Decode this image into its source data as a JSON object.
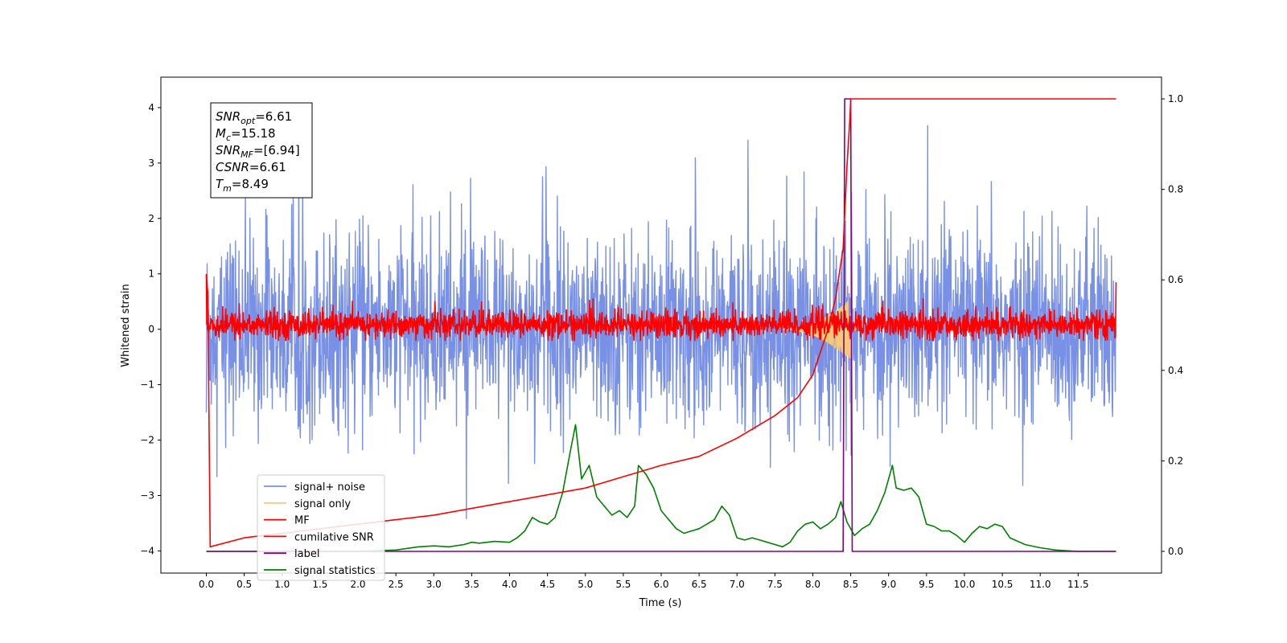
{
  "chart_data": {
    "type": "line",
    "xlabel": "Time (s)",
    "ylabel": "Whitened strain",
    "xlim": [
      -0.6,
      12.6
    ],
    "ylim": [
      -4.4,
      4.55
    ],
    "y2lim": [
      -0.048,
      1.048
    ],
    "x_ticks": [
      "0.0",
      "0.5",
      "1.0",
      "1.5",
      "2.0",
      "2.5",
      "3.0",
      "3.5",
      "4.0",
      "4.5",
      "5.0",
      "5.5",
      "6.0",
      "6.5",
      "7.0",
      "7.5",
      "8.0",
      "8.5",
      "9.0",
      "9.5",
      "10.0",
      "10.5",
      "11.0",
      "11.5"
    ],
    "y_ticks": [
      "−4",
      "−3",
      "−2",
      "−1",
      "0",
      "1",
      "2",
      "3",
      "4"
    ],
    "y2_ticks": [
      "0.0",
      "0.2",
      "0.4",
      "0.6",
      "0.8",
      "1.0"
    ],
    "legend_position": "lower-left",
    "annotation": {
      "lines": [
        {
          "sym": "SNR",
          "sub": "opt",
          "val": "=6.61"
        },
        {
          "sym": "M",
          "sub": "c",
          "val": "=15.18"
        },
        {
          "sym": "SNR",
          "sub": "MF",
          "val": "=[6.94]"
        },
        {
          "sym": "CSNR",
          "sub": "",
          "val": "=6.61"
        },
        {
          "sym": "T",
          "sub": "m",
          "val": "=8.49"
        }
      ]
    },
    "series": [
      {
        "name": "signal+ noise",
        "axis": "left",
        "color": "#7890e6",
        "style": "noise band, roughly −2.2 to 2.2 with spikes up to 4.15 and down to −4.0"
      },
      {
        "name": "signal only",
        "axis": "left",
        "color": "#f5c97a",
        "style": "chirp near merger",
        "peak_time": 8.49,
        "peak_amplitude": 0.55
      },
      {
        "name": "MF",
        "axis": "left",
        "color": "#ff0000",
        "style": "noise band, roughly −0.2 to 0.4"
      },
      {
        "name": "cumilative SNR",
        "axis": "right",
        "color": "#ff0000",
        "x": [
          0.0,
          0.02,
          0.05,
          0.5,
          1.0,
          2.0,
          3.0,
          4.0,
          5.0,
          6.0,
          6.5,
          7.0,
          7.5,
          7.8,
          8.0,
          8.2,
          8.3,
          8.4,
          8.45,
          8.49,
          8.5,
          12.0
        ],
        "y": [
          0.61,
          0.57,
          0.01,
          0.03,
          0.04,
          0.06,
          0.08,
          0.11,
          0.14,
          0.19,
          0.21,
          0.25,
          0.3,
          0.34,
          0.39,
          0.49,
          0.56,
          0.67,
          0.85,
          0.96,
          1.0,
          1.0
        ]
      },
      {
        "name": "label",
        "axis": "right",
        "color": "#800080",
        "x": [
          0.0,
          8.4,
          8.42,
          8.5,
          8.52,
          12.0
        ],
        "y": [
          0.0,
          0.0,
          1.0,
          1.0,
          0.0,
          0.0
        ]
      },
      {
        "name": "signal statistics",
        "axis": "right",
        "color": "#008000",
        "x": [
          0.0,
          0.5,
          1.0,
          2.0,
          2.5,
          2.8,
          3.0,
          3.2,
          3.4,
          3.5,
          3.6,
          3.8,
          4.0,
          4.1,
          4.2,
          4.3,
          4.4,
          4.5,
          4.6,
          4.7,
          4.8,
          4.87,
          4.95,
          5.05,
          5.15,
          5.25,
          5.35,
          5.45,
          5.55,
          5.65,
          5.7,
          5.8,
          5.9,
          6.0,
          6.1,
          6.2,
          6.3,
          6.4,
          6.5,
          6.6,
          6.7,
          6.8,
          6.9,
          7.0,
          7.1,
          7.2,
          7.3,
          7.4,
          7.5,
          7.6,
          7.7,
          7.8,
          7.9,
          8.0,
          8.1,
          8.2,
          8.3,
          8.37,
          8.45,
          8.55,
          8.65,
          8.75,
          8.85,
          8.95,
          9.05,
          9.1,
          9.2,
          9.3,
          9.4,
          9.5,
          9.6,
          9.7,
          9.8,
          9.9,
          10.0,
          10.1,
          10.2,
          10.3,
          10.4,
          10.5,
          10.6,
          10.8,
          11.0,
          11.2,
          11.5,
          12.0
        ],
        "y": [
          0.0,
          0.0,
          0.0,
          0.0,
          0.003,
          0.01,
          0.012,
          0.01,
          0.015,
          0.02,
          0.018,
          0.022,
          0.02,
          0.03,
          0.045,
          0.075,
          0.065,
          0.06,
          0.075,
          0.13,
          0.22,
          0.28,
          0.16,
          0.19,
          0.12,
          0.1,
          0.08,
          0.09,
          0.075,
          0.1,
          0.19,
          0.17,
          0.14,
          0.09,
          0.07,
          0.05,
          0.04,
          0.045,
          0.05,
          0.06,
          0.07,
          0.1,
          0.08,
          0.03,
          0.025,
          0.03,
          0.025,
          0.02,
          0.015,
          0.01,
          0.02,
          0.045,
          0.06,
          0.065,
          0.05,
          0.06,
          0.075,
          0.11,
          0.065,
          0.035,
          0.05,
          0.06,
          0.09,
          0.13,
          0.19,
          0.14,
          0.135,
          0.14,
          0.12,
          0.06,
          0.055,
          0.045,
          0.045,
          0.035,
          0.02,
          0.04,
          0.055,
          0.05,
          0.06,
          0.055,
          0.03,
          0.015,
          0.008,
          0.003,
          0.0,
          0.0
        ]
      }
    ]
  }
}
